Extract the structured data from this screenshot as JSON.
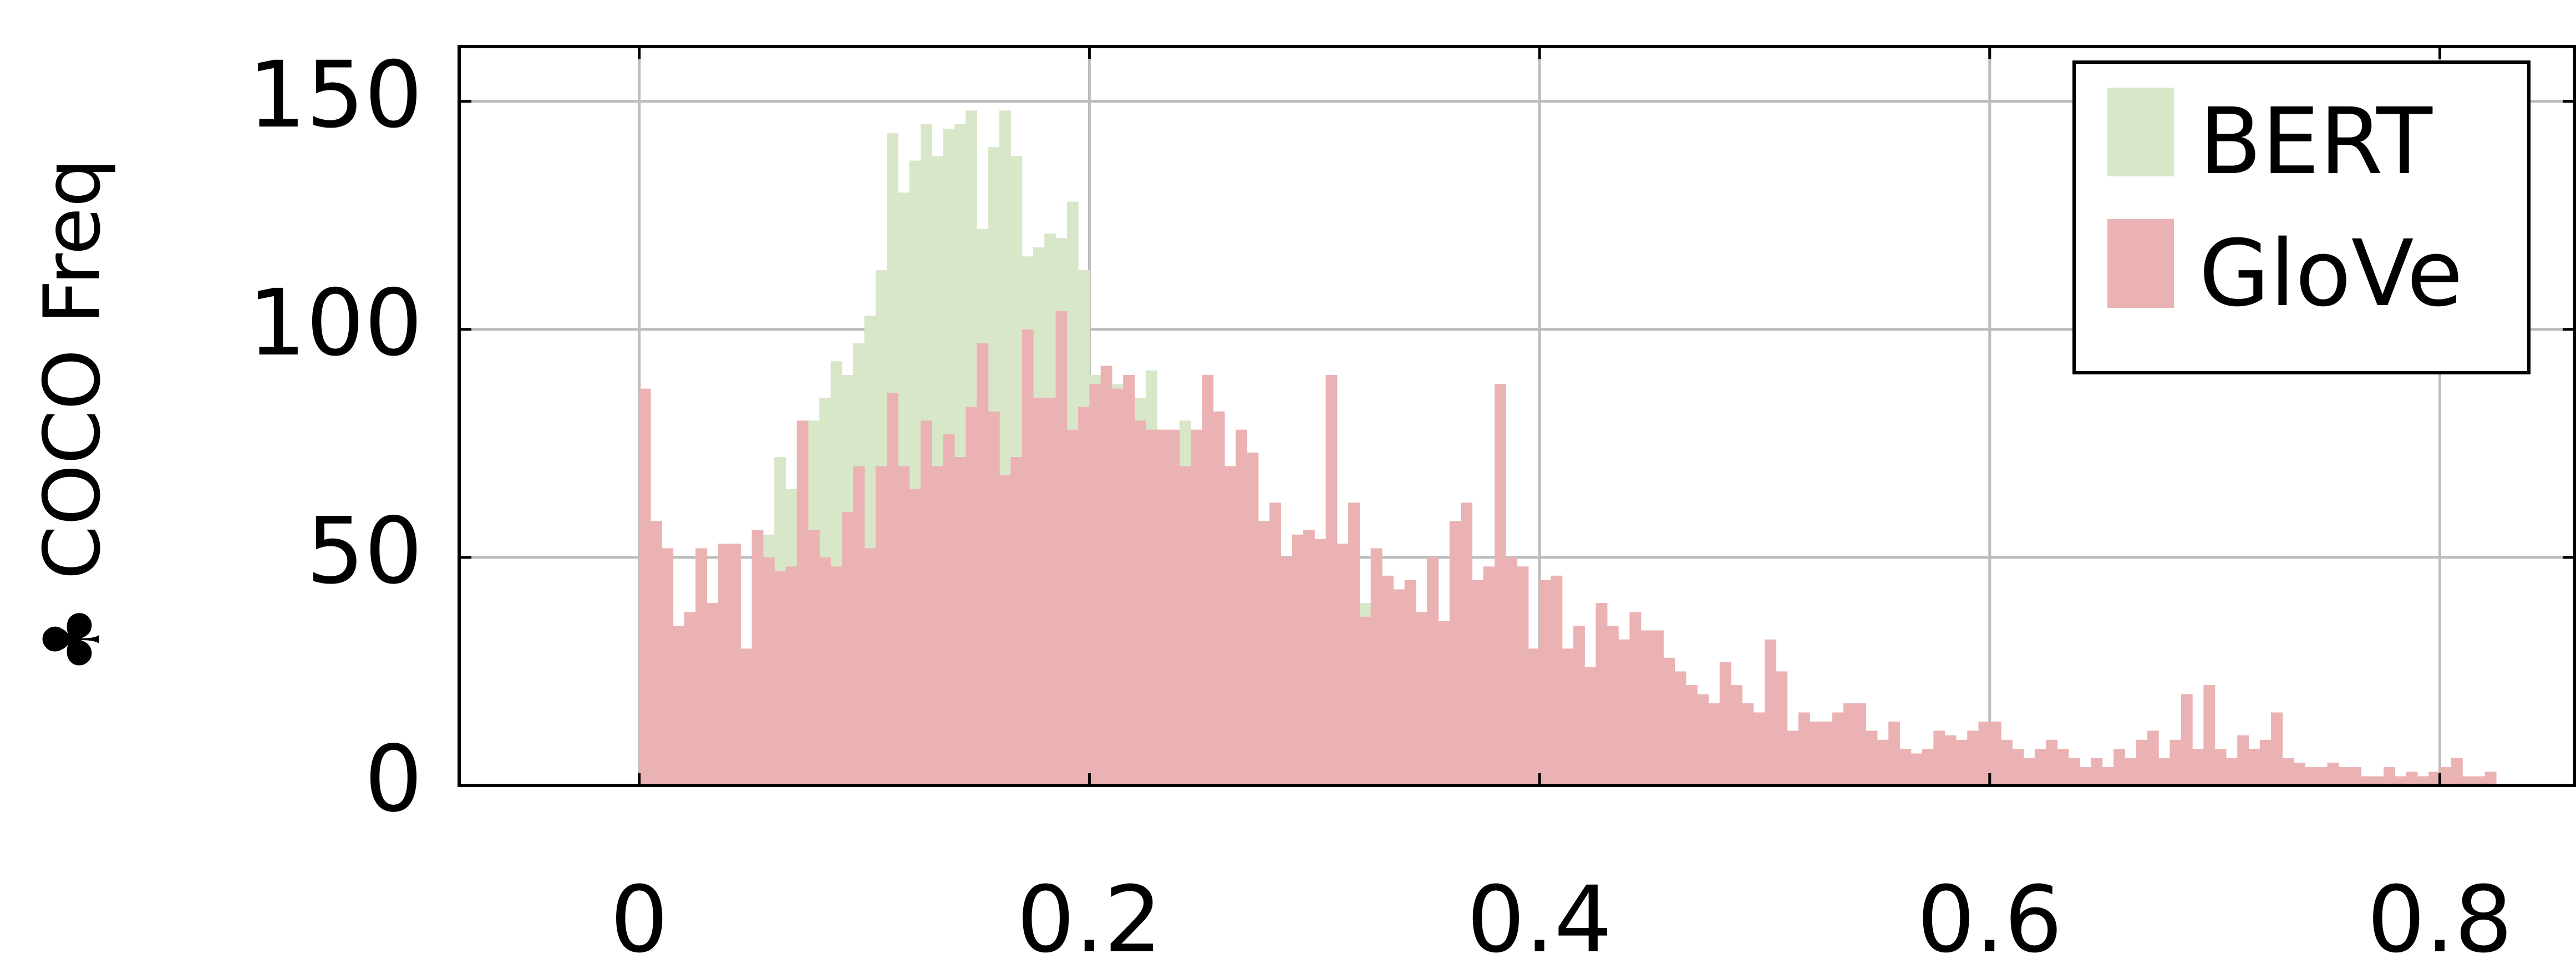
{
  "chart_data": {
    "type": "bar",
    "title": "",
    "xlabel": "",
    "ylabel": "♣ COCO Freq",
    "xlim": [
      -0.08,
      0.86
    ],
    "ylim": [
      0,
      162
    ],
    "x_ticks": [
      {
        "value": 0,
        "label": "0"
      },
      {
        "value": 0.2,
        "label": "0.2"
      },
      {
        "value": 0.4,
        "label": "0.4"
      },
      {
        "value": 0.6,
        "label": "0.6"
      },
      {
        "value": 0.8,
        "label": "0.8"
      }
    ],
    "y_ticks": [
      {
        "value": 0,
        "label": "0"
      },
      {
        "value": 50,
        "label": "50"
      },
      {
        "value": 100,
        "label": "100"
      },
      {
        "value": 150,
        "label": "150"
      }
    ],
    "grid": true,
    "legend_position": "top-right",
    "bin_start": 0,
    "bin_width": 0.005,
    "series": [
      {
        "name": "BERT",
        "color": "#d9e7c9",
        "values": [
          2,
          3,
          4,
          5,
          4,
          6,
          5,
          7,
          8,
          9,
          27,
          55,
          72,
          65,
          48,
          80,
          85,
          93,
          90,
          97,
          103,
          113,
          143,
          130,
          137,
          145,
          138,
          144,
          145,
          148,
          122,
          140,
          148,
          138,
          116,
          118,
          121,
          120,
          128,
          113,
          90,
          76,
          88,
          90,
          85,
          91,
          70,
          68,
          80,
          75,
          62,
          64,
          60,
          55,
          58,
          52,
          48,
          44,
          45,
          48,
          46,
          50,
          40,
          42,
          40,
          38,
          34,
          30,
          28,
          25,
          22,
          20,
          18,
          17,
          18,
          16,
          16,
          17,
          15,
          14,
          12,
          12,
          10,
          10,
          8,
          9,
          9,
          7,
          8,
          7,
          7,
          6,
          6,
          5,
          5,
          5,
          4,
          4,
          3,
          3,
          3,
          3,
          3,
          3,
          2,
          2,
          2,
          2,
          2,
          2,
          2,
          2,
          2,
          2,
          2,
          2,
          2,
          2,
          2,
          2,
          2,
          2,
          2,
          2,
          2,
          2,
          2,
          2,
          2,
          2,
          2,
          2,
          2,
          2,
          2,
          2,
          2,
          2,
          2,
          2,
          2,
          2,
          2,
          2,
          2,
          2,
          2,
          2,
          2,
          2,
          2,
          2,
          2,
          2,
          2,
          2,
          2,
          2,
          2,
          2,
          2
        ]
      },
      {
        "name": "GloVe",
        "color": "#eab2b2",
        "values": [
          87,
          58,
          52,
          35,
          38,
          52,
          40,
          53,
          53,
          30,
          56,
          50,
          47,
          48,
          80,
          56,
          50,
          48,
          60,
          70,
          52,
          70,
          86,
          70,
          65,
          80,
          70,
          77,
          72,
          83,
          97,
          82,
          68,
          72,
          100,
          85,
          85,
          104,
          78,
          83,
          88,
          92,
          87,
          90,
          80,
          78,
          78,
          78,
          70,
          78,
          90,
          82,
          70,
          78,
          73,
          58,
          62,
          50,
          55,
          56,
          54,
          90,
          53,
          62,
          37,
          52,
          46,
          43,
          45,
          38,
          50,
          36,
          58,
          62,
          45,
          48,
          88,
          50,
          48,
          30,
          45,
          46,
          30,
          35,
          26,
          40,
          35,
          32,
          38,
          34,
          34,
          28,
          25,
          22,
          20,
          18,
          27,
          22,
          18,
          16,
          32,
          25,
          12,
          16,
          14,
          14,
          16,
          18,
          18,
          12,
          10,
          14,
          8,
          7,
          8,
          12,
          11,
          10,
          12,
          14,
          14,
          10,
          8,
          6,
          8,
          10,
          8,
          6,
          4,
          6,
          4,
          8,
          6,
          10,
          12,
          6,
          10,
          20,
          8,
          22,
          8,
          6,
          11,
          8,
          10,
          16,
          6,
          5,
          4,
          4,
          5,
          4,
          4,
          2,
          2,
          4,
          2,
          3,
          2,
          3,
          4,
          6,
          2,
          2,
          3
        ]
      }
    ]
  }
}
